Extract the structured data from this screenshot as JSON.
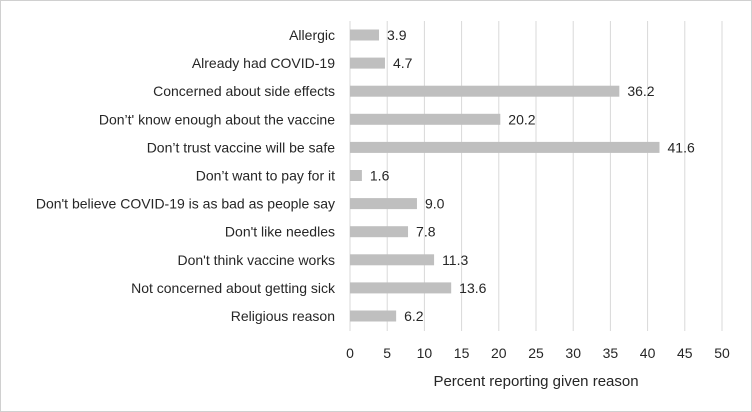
{
  "chart_data": {
    "type": "bar",
    "orientation": "horizontal",
    "categories": [
      "Allergic",
      "Already had COVID-19",
      "Concerned about side effects",
      "Don’t' know enough about the vaccine",
      "Don’t trust vaccine will be safe",
      "Don’t want to pay for it",
      "Don't believe COVID-19 is as bad as people say",
      "Don't like needles",
      "Don't think vaccine works",
      "Not concerned about getting sick",
      "Religious reason"
    ],
    "values": [
      3.9,
      4.7,
      36.2,
      20.2,
      41.6,
      1.6,
      9.0,
      7.8,
      11.3,
      13.6,
      6.2
    ],
    "value_labels": [
      "3.9",
      "4.7",
      "36.2",
      "20.2",
      "41.6",
      "1.6",
      "9.0",
      "7.8",
      "11.3",
      "13.6",
      "6.2"
    ],
    "title": "",
    "xlabel": "Percent reporting given reason",
    "ylabel": "",
    "xlim": [
      0,
      50
    ],
    "x_ticks": [
      0,
      5,
      10,
      15,
      20,
      25,
      30,
      35,
      40,
      45,
      50
    ],
    "grid": "vertical",
    "legend": "none",
    "colors": {
      "bar": "#bfbfbf",
      "grid": "#d9d9d9",
      "text": "#262626"
    }
  }
}
